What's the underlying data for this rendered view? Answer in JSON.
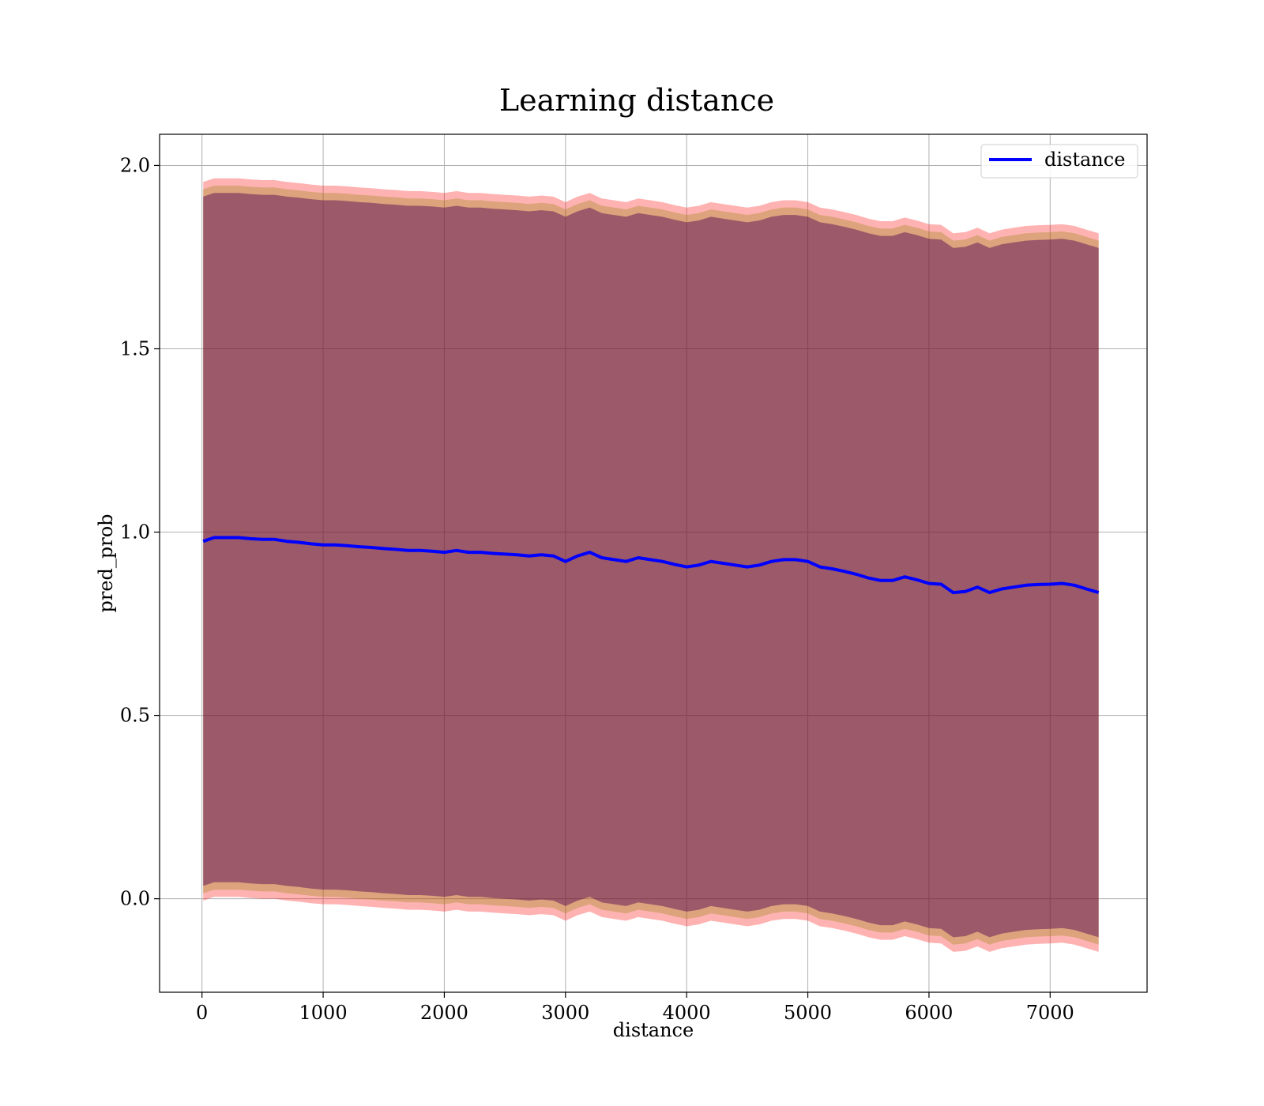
{
  "chart_data": {
    "type": "line",
    "title": "Learning distance",
    "xlabel": "distance",
    "ylabel": "pred_prob",
    "xlim": [
      -350,
      7800
    ],
    "ylim": [
      -0.255,
      2.085
    ],
    "xticks": [
      0,
      1000,
      2000,
      3000,
      4000,
      5000,
      6000,
      7000
    ],
    "xtick_labels": [
      "0",
      "1000",
      "2000",
      "3000",
      "4000",
      "5000",
      "6000",
      "7000"
    ],
    "yticks": [
      0.0,
      0.5,
      1.0,
      1.5,
      2.0
    ],
    "ytick_labels": [
      "0.0",
      "0.5",
      "1.0",
      "1.5",
      "2.0"
    ],
    "grid": true,
    "legend": {
      "position": "top-right",
      "entries": [
        "distance"
      ]
    },
    "colors": {
      "line": "#0000ff",
      "band_outer": "#ff0000",
      "band_middle": "#8b8000",
      "band_inner": "#4b0052",
      "grid": "#b0b0b0"
    },
    "series": [
      {
        "name": "distance",
        "x": [
          10,
          100,
          200,
          300,
          400,
          500,
          600,
          700,
          800,
          900,
          1000,
          1100,
          1200,
          1300,
          1400,
          1500,
          1600,
          1700,
          1800,
          1900,
          2000,
          2100,
          2200,
          2300,
          2400,
          2500,
          2600,
          2700,
          2800,
          2900,
          3000,
          3100,
          3200,
          3300,
          3400,
          3500,
          3600,
          3700,
          3800,
          3900,
          4000,
          4100,
          4200,
          4300,
          4400,
          4500,
          4600,
          4700,
          4800,
          4900,
          5000,
          5100,
          5200,
          5300,
          5400,
          5500,
          5600,
          5700,
          5800,
          5900,
          6000,
          6100,
          6200,
          6300,
          6400,
          6500,
          6600,
          6700,
          6800,
          6900,
          7000,
          7100,
          7200,
          7300,
          7400
        ],
        "y": [
          0.975,
          0.985,
          0.985,
          0.985,
          0.982,
          0.98,
          0.98,
          0.975,
          0.972,
          0.968,
          0.965,
          0.965,
          0.963,
          0.96,
          0.958,
          0.955,
          0.953,
          0.95,
          0.95,
          0.948,
          0.945,
          0.95,
          0.945,
          0.945,
          0.942,
          0.94,
          0.938,
          0.935,
          0.938,
          0.935,
          0.92,
          0.935,
          0.945,
          0.93,
          0.925,
          0.92,
          0.93,
          0.925,
          0.92,
          0.912,
          0.905,
          0.91,
          0.92,
          0.915,
          0.91,
          0.905,
          0.91,
          0.92,
          0.925,
          0.925,
          0.92,
          0.905,
          0.9,
          0.893,
          0.885,
          0.875,
          0.868,
          0.868,
          0.878,
          0.87,
          0.86,
          0.858,
          0.835,
          0.838,
          0.85,
          0.835,
          0.845,
          0.85,
          0.855,
          0.857,
          0.858,
          0.86,
          0.855,
          0.845,
          0.835
        ],
        "band_inner_halfwidth": 0.94,
        "band_middle_halfwidth": 0.96,
        "band_outer_halfwidth": 0.98
      }
    ]
  }
}
